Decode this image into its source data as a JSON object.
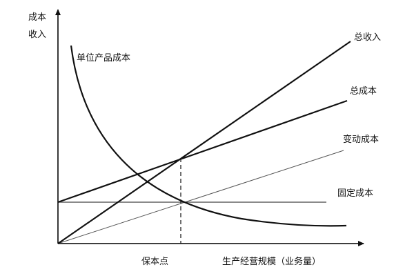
{
  "axes": {
    "y_label_line1": "成本",
    "y_label_line2": "收入",
    "x_label": "生产经营规模（业务量）",
    "breakeven_label": "保本点"
  },
  "lines": {
    "unit_cost": "单位产品成本",
    "total_revenue": "总收入",
    "total_cost": "总成本",
    "variable_cost": "变动成本",
    "fixed_cost": "固定成本"
  },
  "colors": {
    "line": "#111111",
    "thin_line": "#444444"
  }
}
